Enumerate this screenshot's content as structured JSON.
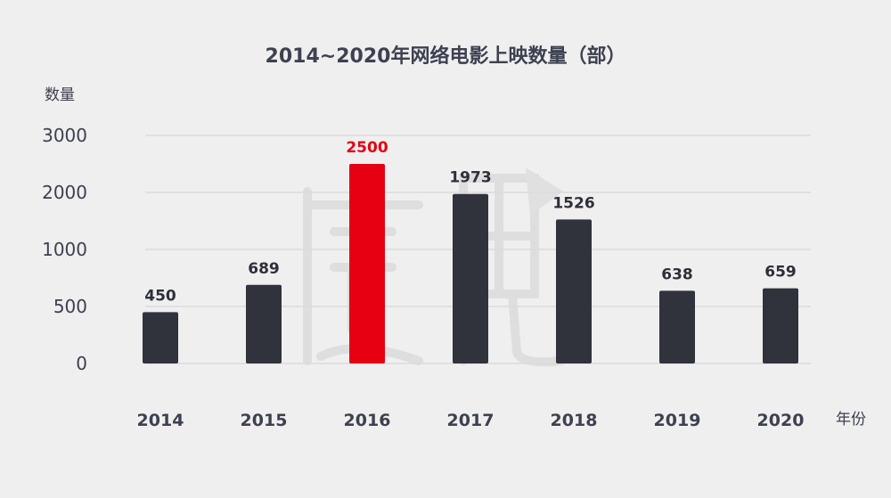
{
  "chart_data": {
    "type": "bar",
    "title": "2014~2020年网络电影上映数量（部）",
    "ylabel": "数量",
    "xlabel": "年份",
    "categories": [
      "2014",
      "2015",
      "2016",
      "2017",
      "2018",
      "2019",
      "2020"
    ],
    "values": [
      450,
      689,
      2500,
      1973,
      1526,
      638,
      659
    ],
    "data_labels": [
      "450",
      "689",
      "2500",
      "1973",
      "1526",
      "638",
      "659"
    ],
    "yticks": [
      0,
      500,
      1000,
      2000,
      3000
    ],
    "ytick_labels": [
      "0",
      "500",
      "1000",
      "2000",
      "3000"
    ],
    "grid": true,
    "legend": "none",
    "highlight_index": 2,
    "colors": {
      "bar": "#30333b",
      "highlight": "#e60012",
      "background": "#efefef",
      "grid": "#dcdcdc"
    }
  }
}
